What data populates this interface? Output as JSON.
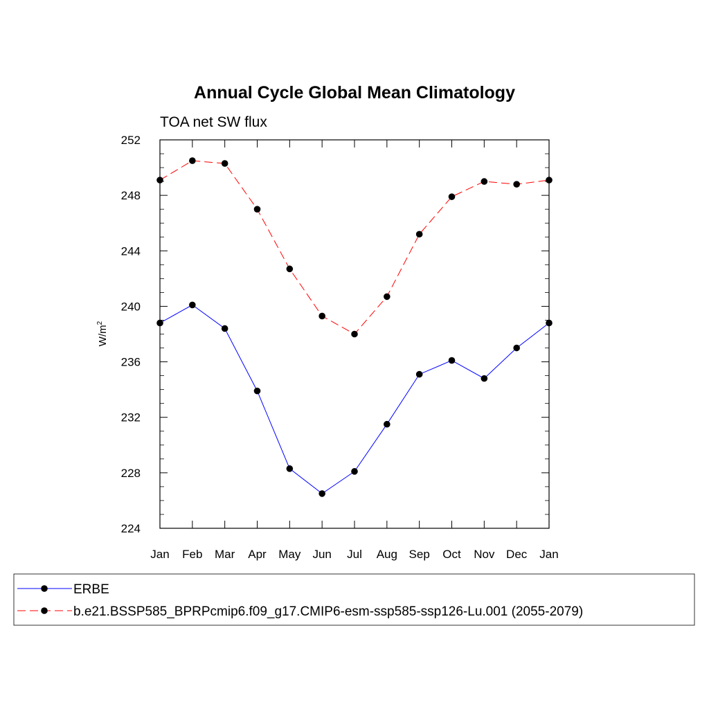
{
  "chart_data": {
    "type": "line",
    "title": "Annual Cycle Global Mean Climatology",
    "subtitle": "TOA net SW flux",
    "ylabel": "W/m",
    "ylabel_superscript": "2",
    "categories": [
      "Jan",
      "Feb",
      "Mar",
      "Apr",
      "May",
      "Jun",
      "Jul",
      "Aug",
      "Sep",
      "Oct",
      "Nov",
      "Dec",
      "Jan"
    ],
    "ylim": [
      224,
      252
    ],
    "yticks": [
      "224",
      "228",
      "232",
      "236",
      "240",
      "244",
      "248",
      "252"
    ],
    "grid": false,
    "legend_position": "bottom",
    "series": [
      {
        "name": "ERBE",
        "color": "#0000ff",
        "dash": "solid",
        "values": [
          238.8,
          240.1,
          238.4,
          233.9,
          228.3,
          226.5,
          228.1,
          231.5,
          235.1,
          236.1,
          234.8,
          237.0,
          238.8
        ]
      },
      {
        "name": "b.e21.BSSP585_BPRPcmip6.f09_g17.CMIP6-esm-ssp585-ssp126-Lu.001 (2055-2079)",
        "color": "#ff0000",
        "dash": "dashed",
        "values": [
          249.1,
          250.5,
          250.3,
          247.0,
          242.7,
          239.3,
          238.0,
          240.7,
          245.2,
          247.9,
          249.0,
          248.8,
          249.1
        ]
      }
    ]
  }
}
